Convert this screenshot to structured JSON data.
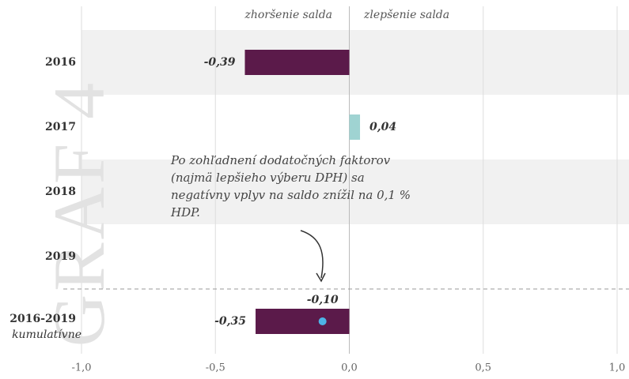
{
  "chart_data": {
    "type": "hbar",
    "watermark": "GRAF 4",
    "left_header": "zhoršenie salda",
    "right_header": "zlepšenie salda",
    "categories": [
      "2016",
      "2017",
      "2018",
      "2019",
      "2016-2019"
    ],
    "category_note": "kumulatívne",
    "values": [
      -0.39,
      0.04,
      null,
      null,
      -0.35
    ],
    "value_labels": [
      "-0,39",
      "0,04",
      null,
      null,
      "-0,35"
    ],
    "colors": [
      "#5b1a4a",
      "#9fd3d2",
      null,
      null,
      "#5b1a4a"
    ],
    "marker": {
      "value": -0.1,
      "label": "-0,10",
      "color": "#4db3e6"
    },
    "annotation": [
      "Po zohľadnení dodatočných faktorov",
      "(najmä lepšieho výberu DPH) sa",
      "negatívny vplyv na saldo znížil na 0,1 %",
      "HDP."
    ],
    "xlim": [
      -1.0,
      1.0
    ],
    "xticks": [
      {
        "value": -1.0,
        "label": "-1,0"
      },
      {
        "value": -0.5,
        "label": "-0,5"
      },
      {
        "value": 0.0,
        "label": "0,0"
      },
      {
        "value": 0.5,
        "label": "0,5"
      },
      {
        "value": 1.0,
        "label": "1,0"
      }
    ],
    "grid": true
  }
}
